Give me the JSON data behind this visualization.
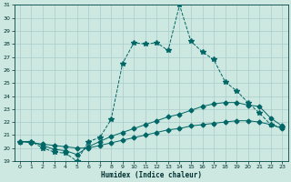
{
  "xlabel": "Humidex (Indice chaleur)",
  "background_color": "#cce8e0",
  "grid_color": "#aacccc",
  "line_color": "#006666",
  "xlim": [
    -0.5,
    23.5
  ],
  "ylim": [
    19,
    31
  ],
  "xticks": [
    0,
    1,
    2,
    3,
    4,
    5,
    6,
    7,
    8,
    9,
    10,
    11,
    12,
    13,
    14,
    15,
    16,
    17,
    18,
    19,
    20,
    21,
    22,
    23
  ],
  "yticks": [
    19,
    20,
    21,
    22,
    23,
    24,
    25,
    26,
    27,
    28,
    29,
    30,
    31
  ],
  "series": [
    {
      "x": [
        0,
        1,
        2,
        3,
        4,
        5,
        6,
        7,
        8,
        9,
        10,
        11,
        12,
        13,
        14,
        15,
        16,
        17,
        18,
        19,
        20,
        21,
        22,
        23
      ],
      "y": [
        20.5,
        20.5,
        20.0,
        19.7,
        19.6,
        19.0,
        20.5,
        20.8,
        22.2,
        26.5,
        28.1,
        28.0,
        28.1,
        27.5,
        31.0,
        28.2,
        27.4,
        26.8,
        25.1,
        24.4,
        23.5,
        22.7,
        21.8,
        21.6
      ],
      "marker": "*",
      "linestyle": "--",
      "markersize": 4
    },
    {
      "x": [
        0,
        1,
        2,
        3,
        4,
        5,
        6,
        7,
        8,
        9,
        10,
        11,
        12,
        13,
        14,
        15,
        16,
        17,
        18,
        19,
        20,
        21,
        22,
        23
      ],
      "y": [
        20.5,
        20.5,
        20.2,
        19.9,
        19.8,
        19.5,
        20.1,
        20.5,
        20.9,
        21.2,
        21.5,
        21.8,
        22.1,
        22.4,
        22.6,
        22.9,
        23.2,
        23.4,
        23.5,
        23.5,
        23.3,
        23.2,
        22.3,
        21.7
      ],
      "marker": "D",
      "linestyle": "-",
      "markersize": 2.5
    },
    {
      "x": [
        0,
        1,
        2,
        3,
        4,
        5,
        6,
        7,
        8,
        9,
        10,
        11,
        12,
        13,
        14,
        15,
        16,
        17,
        18,
        19,
        20,
        21,
        22,
        23
      ],
      "y": [
        20.5,
        20.4,
        20.3,
        20.2,
        20.1,
        20.0,
        20.0,
        20.2,
        20.4,
        20.6,
        20.8,
        21.0,
        21.2,
        21.4,
        21.5,
        21.7,
        21.8,
        21.9,
        22.0,
        22.1,
        22.1,
        22.0,
        21.8,
        21.5
      ],
      "marker": "D",
      "linestyle": "-",
      "markersize": 2.5
    }
  ]
}
